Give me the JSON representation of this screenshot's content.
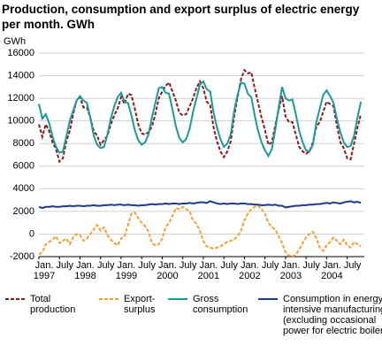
{
  "chart_data": {
    "type": "line",
    "title": "Production, consumption and export surplus of electric energy per month. GWh",
    "y_label": "GWh",
    "categories": [
      "Jan.\n1997",
      null,
      null,
      null,
      null,
      null,
      "July",
      null,
      null,
      null,
      null,
      null,
      "Jan.\n1998",
      null,
      null,
      null,
      null,
      null,
      "July",
      null,
      null,
      null,
      null,
      null,
      "Jan.\n1999",
      null,
      null,
      null,
      null,
      null,
      "July",
      null,
      null,
      null,
      null,
      null,
      "Jan.\n2000",
      null,
      null,
      null,
      null,
      null,
      "July",
      null,
      null,
      null,
      null,
      null,
      "Jan.\n2001",
      null,
      null,
      null,
      null,
      null,
      "July",
      null,
      null,
      null,
      null,
      null,
      "Jan.\n2002",
      null,
      null,
      null,
      null,
      null,
      "July",
      null,
      null,
      null,
      null,
      null,
      "Jan.\n2003",
      null,
      null,
      null,
      null,
      null,
      "July",
      null,
      null,
      null,
      null,
      null,
      "Jan.\n2004",
      null,
      null,
      null,
      null,
      null,
      "July",
      null,
      null,
      null,
      null
    ],
    "ylim": [
      -2000,
      16000
    ],
    "yticks": [
      -2000,
      0,
      2000,
      4000,
      6000,
      8000,
      10000,
      12000,
      14000,
      16000
    ],
    "grid": true,
    "series": [
      {
        "name": "Total production",
        "color": "#8b1a1a",
        "dash": true,
        "values": [
          9700,
          8600,
          9700,
          9100,
          8100,
          7500,
          6400,
          6700,
          8200,
          9100,
          10600,
          11800,
          12100,
          11200,
          11200,
          10300,
          9100,
          8700,
          7900,
          8300,
          8700,
          9700,
          10500,
          11100,
          12100,
          11500,
          12400,
          12300,
          11100,
          9700,
          8900,
          8800,
          9000,
          9500,
          10600,
          12000,
          12600,
          13100,
          13400,
          12600,
          11800,
          10700,
          10500,
          10600,
          11300,
          12000,
          12900,
          13500,
          12900,
          11700,
          11400,
          9400,
          8200,
          7300,
          6800,
          7300,
          8200,
          10400,
          12100,
          13700,
          14500,
          14200,
          14300,
          12900,
          11600,
          10300,
          9200,
          7900,
          8100,
          9600,
          11000,
          12200,
          10400,
          9900,
          9900,
          8800,
          7700,
          7300,
          7100,
          7300,
          8100,
          9500,
          9900,
          10800,
          11700,
          11500,
          11300,
          9600,
          8100,
          7600,
          6700,
          6600,
          8000,
          9400,
          10600
        ]
      },
      {
        "name": "Export-surplus",
        "color": "#f5a033",
        "dash": true,
        "values": [
          -1800,
          -1600,
          -900,
          -700,
          -500,
          -200,
          -800,
          -600,
          -400,
          -900,
          -300,
          0,
          -100,
          -600,
          -400,
          0,
          400,
          800,
          300,
          600,
          -100,
          -500,
          -800,
          -1000,
          -400,
          -200,
          800,
          1800,
          1900,
          1400,
          1000,
          700,
          200,
          -800,
          -1000,
          -900,
          -400,
          600,
          1000,
          1600,
          2300,
          2200,
          2400,
          2200,
          2000,
          1200,
          900,
          300,
          -600,
          -1100,
          -1200,
          -1300,
          -1200,
          -1100,
          -900,
          -700,
          -600,
          -500,
          -200,
          300,
          1200,
          1800,
          2200,
          2400,
          2500,
          2200,
          1800,
          1000,
          600,
          400,
          -200,
          -800,
          -1600,
          -1900,
          -2000,
          -1800,
          -1400,
          -800,
          -300,
          0,
          200,
          -400,
          -1200,
          -1500,
          -1000,
          -700,
          -300,
          -600,
          -900,
          -500,
          -1000,
          -1200,
          -700,
          -900,
          -1100
        ]
      },
      {
        "name": "Gross consumption",
        "color": "#1a9a9a",
        "dash": false,
        "values": [
          11500,
          10200,
          10600,
          9800,
          8600,
          7700,
          7200,
          7300,
          8600,
          10000,
          10900,
          11800,
          12200,
          11800,
          11600,
          10300,
          8700,
          7900,
          7600,
          7700,
          8800,
          10200,
          11300,
          12100,
          12500,
          11700,
          11600,
          10500,
          9200,
          8300,
          7900,
          8100,
          8800,
          10300,
          11600,
          12900,
          13000,
          12500,
          12400,
          11000,
          9500,
          8500,
          8100,
          8400,
          9300,
          10800,
          12000,
          13200,
          13500,
          12800,
          12600,
          10700,
          9400,
          8400,
          7700,
          8000,
          8800,
          10900,
          12300,
          13400,
          13300,
          12400,
          12100,
          10500,
          9100,
          8100,
          7400,
          6900,
          7500,
          9200,
          11200,
          13000,
          12000,
          11800,
          11900,
          10600,
          9100,
          8100,
          7400,
          7300,
          7900,
          9900,
          11100,
          12300,
          12700,
          12200,
          11600,
          10200,
          9000,
          8100,
          7700,
          7800,
          8700,
          10300,
          11700
        ]
      },
      {
        "name": "Consumption in energy-intensive manufacturing (excluding occasional power for electric boilers)",
        "color": "#1a3a8a",
        "dash": false,
        "values": [
          2400,
          2300,
          2400,
          2400,
          2450,
          2400,
          2400,
          2450,
          2450,
          2500,
          2450,
          2500,
          2500,
          2450,
          2500,
          2500,
          2550,
          2500,
          2500,
          2550,
          2550,
          2600,
          2550,
          2600,
          2600,
          2550,
          2600,
          2550,
          2550,
          2500,
          2550,
          2550,
          2600,
          2650,
          2600,
          2650,
          2650,
          2700,
          2650,
          2700,
          2700,
          2650,
          2700,
          2700,
          2750,
          2700,
          2750,
          2800,
          2800,
          2750,
          2900,
          2800,
          2700,
          2650,
          2700,
          2650,
          2700,
          2700,
          2650,
          2700,
          2700,
          2650,
          2650,
          2600,
          2600,
          2550,
          2550,
          2600,
          2550,
          2600,
          2500,
          2500,
          2350,
          2400,
          2450,
          2500,
          2500,
          2550,
          2550,
          2600,
          2600,
          2650,
          2650,
          2700,
          2750,
          2700,
          2800,
          2750,
          2700,
          2800,
          2850,
          2900,
          2800,
          2850,
          2750
        ]
      }
    ]
  }
}
